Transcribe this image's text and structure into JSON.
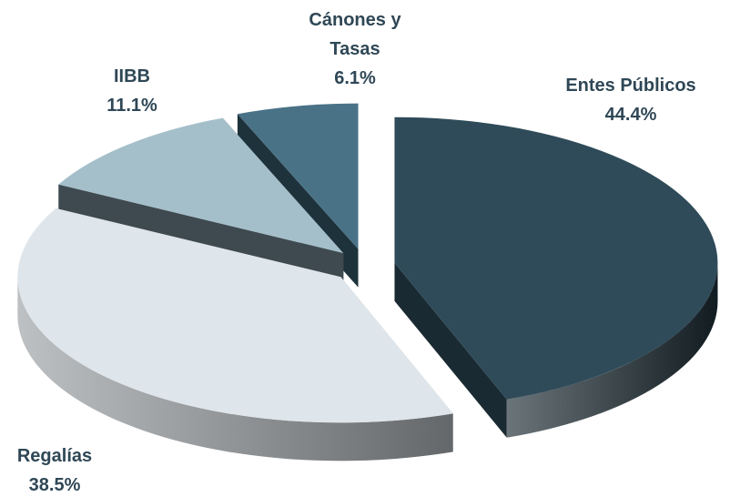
{
  "chart_data": {
    "type": "pie",
    "categories": [
      "Entes Públicos",
      "Regalías",
      "IIBB",
      "Cánones y Tasas"
    ],
    "values": [
      44.4,
      38.5,
      11.1,
      6.1
    ],
    "value_labels": [
      "44.4%",
      "38.5%",
      "11.1%",
      "6.1%"
    ],
    "colors": [
      "#2f4b59",
      "#dfe6eb",
      "#a4bfca",
      "#4a7287"
    ],
    "side_colors": [
      "#1a2a32",
      "#9a9fa3",
      "#3f4a50",
      "#1e323b"
    ]
  }
}
